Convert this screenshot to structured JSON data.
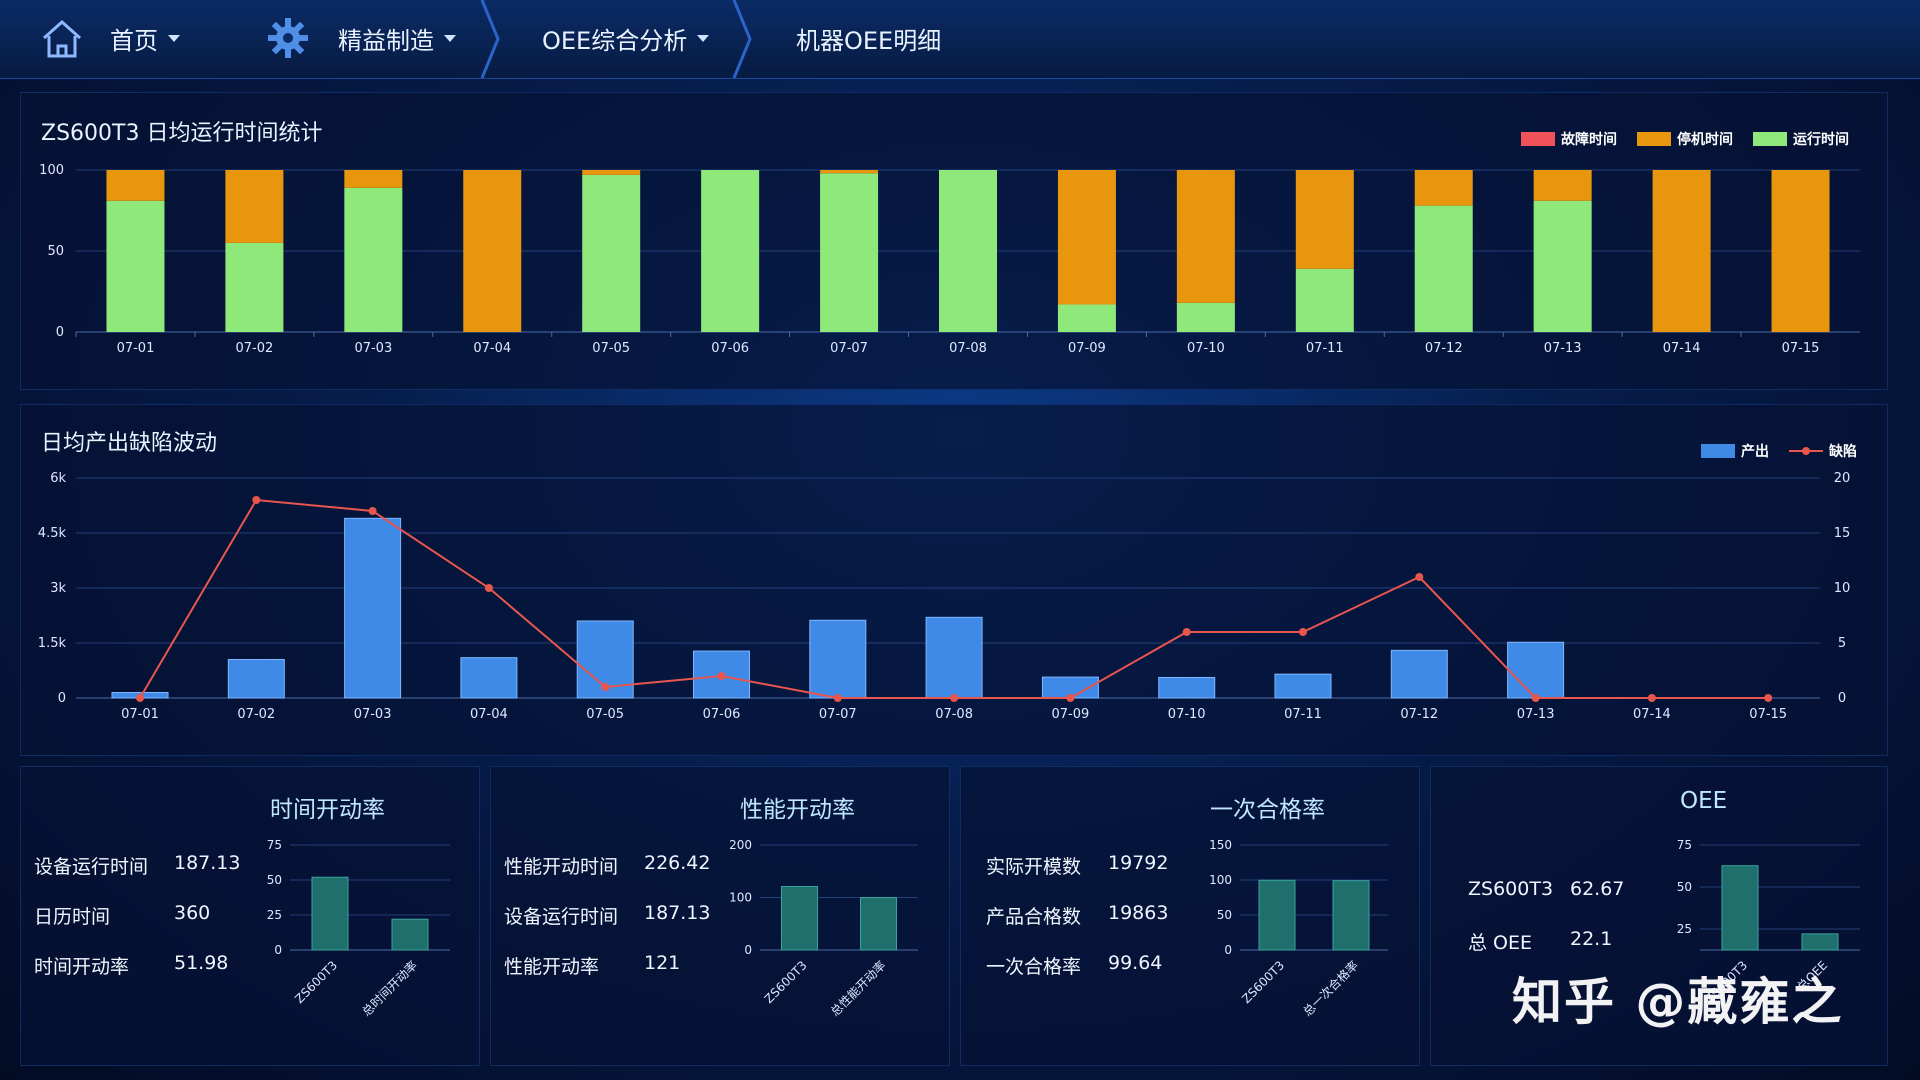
{
  "nav": {
    "home": "首页",
    "lean": "精益制造",
    "oee": "OEE综合分析",
    "detail": "机器OEE明细"
  },
  "runtime_chart": {
    "title": "ZS600T3 日均运行时间统计",
    "legend": [
      "故障时间",
      "停机时间",
      "运行时间"
    ],
    "colors": {
      "fault": "#f0525a",
      "stop": "#e8960e",
      "run": "#8fe87a"
    }
  },
  "output_chart": {
    "title": "日均产出缺陷波动",
    "legend": [
      "产出",
      "缺陷"
    ],
    "colors": {
      "output": "#3f8ae6",
      "defect": "#e8564e"
    }
  },
  "chart_data": [
    {
      "type": "bar",
      "stacked": true,
      "categories": [
        "07-01",
        "07-02",
        "07-03",
        "07-04",
        "07-05",
        "07-06",
        "07-07",
        "07-08",
        "07-09",
        "07-10",
        "07-11",
        "07-12",
        "07-13",
        "07-14",
        "07-15"
      ],
      "series": [
        {
          "name": "故障时间",
          "values": [
            0,
            0,
            0,
            0,
            0,
            0,
            0,
            0,
            0,
            0,
            0,
            0,
            0,
            0,
            0
          ]
        },
        {
          "name": "停机时间",
          "values": [
            19,
            45,
            11,
            100,
            3,
            0,
            2,
            0,
            83,
            82,
            61,
            22,
            19,
            100,
            100
          ]
        },
        {
          "name": "运行时间",
          "values": [
            81,
            55,
            89,
            0,
            97,
            100,
            98,
            100,
            17,
            18,
            39,
            78,
            81,
            0,
            0
          ]
        }
      ],
      "yticks": [
        "0",
        "50",
        "100"
      ],
      "ylim": [
        0,
        100
      ],
      "legend": "top-right"
    },
    {
      "type": "bar",
      "categories": [
        "07-01",
        "07-02",
        "07-03",
        "07-04",
        "07-05",
        "07-06",
        "07-07",
        "07-08",
        "07-09",
        "07-10",
        "07-11",
        "07-12",
        "07-13",
        "07-14",
        "07-15"
      ],
      "series": [
        {
          "name": "产出",
          "type": "bar",
          "axis": "left",
          "values": [
            150,
            1050,
            4900,
            1100,
            2100,
            1280,
            2120,
            2200,
            570,
            560,
            650,
            1300,
            1520,
            0,
            0
          ]
        },
        {
          "name": "缺陷",
          "type": "line",
          "axis": "right",
          "values": [
            0,
            18,
            17,
            10,
            1,
            2,
            0,
            0,
            0,
            6,
            6,
            11,
            0,
            0,
            0
          ]
        }
      ],
      "yticks_left": [
        "0",
        "1.5k",
        "3k",
        "4.5k",
        "6k"
      ],
      "yticks_right": [
        "0",
        "5",
        "10",
        "15",
        "20"
      ],
      "ylim_left": [
        0,
        6000
      ],
      "ylim_right": [
        0,
        20
      ],
      "legend": "top-right"
    },
    {
      "type": "bar",
      "title": "时间开动率",
      "categories": [
        "ZS600T3",
        "总时间开动率"
      ],
      "values": [
        51.98,
        22
      ],
      "yticks": [
        "0",
        "25",
        "50",
        "75"
      ],
      "ylim": [
        0,
        75
      ]
    },
    {
      "type": "bar",
      "title": "性能开动率",
      "categories": [
        "ZS600T3",
        "总性能开动率"
      ],
      "values": [
        121,
        100
      ],
      "yticks": [
        "0",
        "100",
        "200"
      ],
      "ylim": [
        0,
        200
      ]
    },
    {
      "type": "bar",
      "title": "一次合格率",
      "categories": [
        "ZS600T3",
        "总一次合格率"
      ],
      "values": [
        99.64,
        99
      ],
      "yticks": [
        "0",
        "50",
        "100",
        "150"
      ],
      "ylim": [
        0,
        150
      ]
    },
    {
      "type": "bar",
      "title": "OEE",
      "categories": [
        "ZS600T3",
        "总OEE"
      ],
      "values": [
        62.67,
        22.1
      ],
      "yticks": [
        "25",
        "50",
        "75"
      ],
      "ylim": [
        12.5,
        75
      ]
    }
  ],
  "cards": [
    {
      "rows": [
        {
          "k": "设备运行时间",
          "v": "187.13"
        },
        {
          "k": "日历时间",
          "v": "360"
        },
        {
          "k": "时间开动率",
          "v": "51.98"
        }
      ]
    },
    {
      "rows": [
        {
          "k": "性能开动时间",
          "v": "226.42"
        },
        {
          "k": "设备运行时间",
          "v": "187.13"
        },
        {
          "k": "性能开动率",
          "v": "121"
        }
      ]
    },
    {
      "rows": [
        {
          "k": "实际开模数",
          "v": "19792"
        },
        {
          "k": "产品合格数",
          "v": "19863"
        },
        {
          "k": "一次合格率",
          "v": "99.64"
        }
      ]
    },
    {
      "rows": [
        {
          "k": "ZS600T3",
          "v": "62.67"
        },
        {
          "k": "总 OEE",
          "v": "22.1"
        }
      ]
    }
  ],
  "mini_bar_color": "#1f6f6d",
  "watermark": "知乎 @藏雍之"
}
